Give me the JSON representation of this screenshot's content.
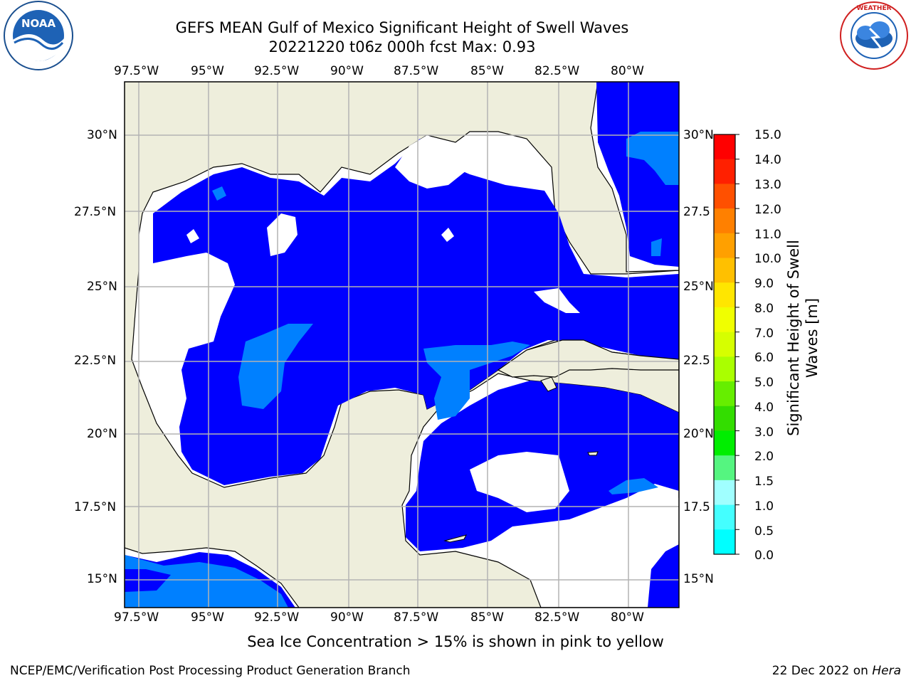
{
  "header": {
    "title": "GEFS MEAN Gulf of Mexico Significant Height of Swell Waves",
    "subtitle": "20221220 t06z 000h fcst   Max: 0.93"
  },
  "logos": {
    "left": "NOAA",
    "left_ring": "NATIONAL OCEANIC AND ATMOSPHERIC ADMINISTRATION · U.S. DEPARTMENT OF COMMERCE",
    "right_ring": "NATIONAL WEATHER SERVICE"
  },
  "axes": {
    "lon_labels": [
      "97.5°W",
      "95°W",
      "92.5°W",
      "90°W",
      "87.5°W",
      "85°W",
      "82.5°W",
      "80°W"
    ],
    "lat_labels_left": [
      "30°N",
      "27.5°N",
      "25°N",
      "22.5°N",
      "20°N",
      "17.5°N",
      "15°N"
    ],
    "lat_labels_right": [
      "30°N",
      "27.5",
      "25°N",
      "22.5",
      "20°N",
      "17.5",
      "15°N"
    ]
  },
  "colorbar": {
    "title": "Significant Height of Swell Waves [m]",
    "ticks": [
      "15.0",
      "14.0",
      "13.0",
      "12.0",
      "11.0",
      "10.0",
      "9.0",
      "8.0",
      "7.0",
      "6.0",
      "5.0",
      "4.0",
      "3.0",
      "2.0",
      "1.5",
      "1.0",
      "0.5",
      "0.0"
    ],
    "colors": [
      "#ff0000",
      "#ff2000",
      "#ff5000",
      "#ff8000",
      "#ffa000",
      "#ffc000",
      "#ffe600",
      "#f0ff00",
      "#d6ff00",
      "#aaff00",
      "#66ee00",
      "#33dd00",
      "#00ee00",
      "#55f580",
      "#a0ffff",
      "#44ffff",
      "#00ffff",
      "#0080ff",
      "#0000ff"
    ]
  },
  "colors": {
    "land": "#eeeedc",
    "sea_low": "#0000ff",
    "sea_mid": "#0080ff",
    "no_data": "#ffffff",
    "grid": "#b3b3b3"
  },
  "footer": {
    "note": "Sea Ice Concentration > 15% is shown in pink to yellow",
    "left": "NCEP/EMC/Verification Post Processing Product Generation Branch",
    "right_date": "22 Dec 2022 on ",
    "right_host": "Hera"
  }
}
